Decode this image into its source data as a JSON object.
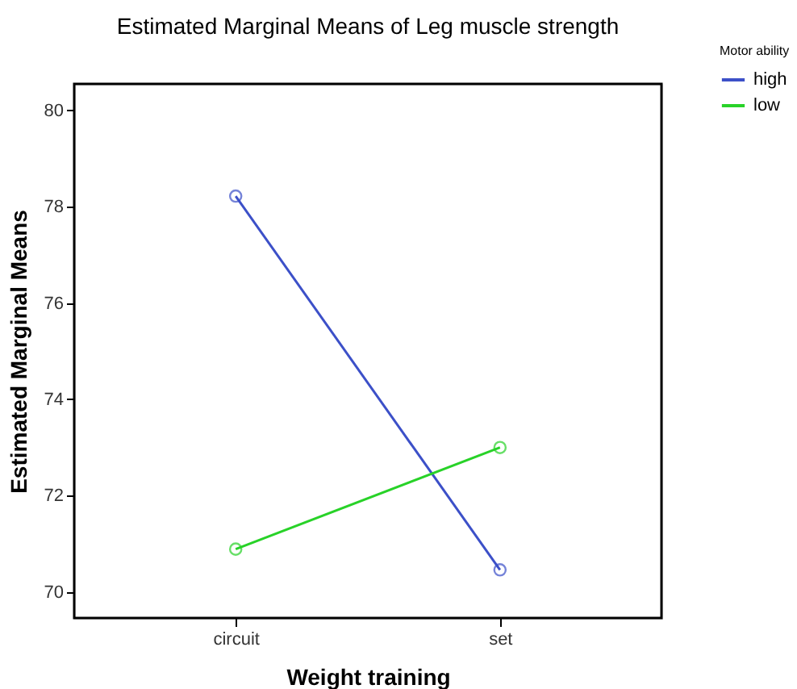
{
  "chart_data": {
    "type": "line",
    "title": "Estimated Marginal Means of Leg muscle strength",
    "xlabel": "Weight training",
    "ylabel": "Estimated Marginal Means",
    "legend_title": "Motor ability",
    "categories": [
      "circuit",
      "set"
    ],
    "series": [
      {
        "name": "high",
        "color": "#3c50c8",
        "values": [
          78.22,
          70.46
        ]
      },
      {
        "name": "low",
        "color": "#28d228",
        "values": [
          70.89,
          73.0
        ]
      }
    ],
    "ylim": [
      69.46,
      80.55
    ],
    "yticks": [
      70,
      72,
      74,
      76,
      78,
      80
    ],
    "grid": false,
    "legend": "top right",
    "marker": "circle",
    "line_style": "solid"
  }
}
